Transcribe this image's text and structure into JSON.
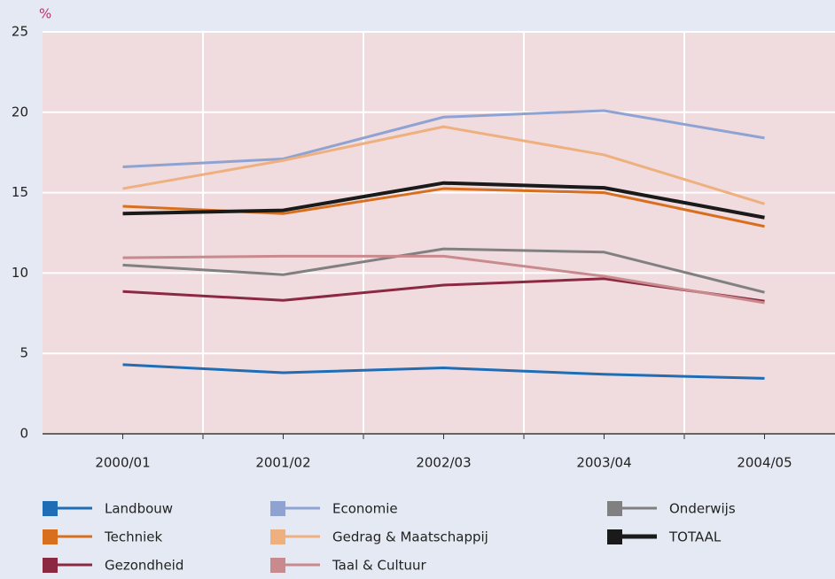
{
  "chart_data": {
    "type": "line",
    "y_label": "%",
    "categories": [
      "2000/01",
      "2001/02",
      "2002/03",
      "2003/04",
      "2004/05"
    ],
    "series": [
      {
        "name": "Landbouw",
        "color": "#1f6db5",
        "values": [
          4.3,
          3.8,
          4.1,
          3.7,
          3.45
        ]
      },
      {
        "name": "Economie",
        "color": "#8fa3d3",
        "values": [
          16.6,
          17.1,
          19.7,
          20.1,
          18.4
        ]
      },
      {
        "name": "Onderwijs",
        "color": "#808080",
        "values": [
          10.5,
          9.9,
          11.5,
          11.3,
          8.8
        ]
      },
      {
        "name": "Techniek",
        "color": "#d86f1f",
        "values": [
          14.15,
          13.7,
          15.25,
          15.0,
          12.9
        ]
      },
      {
        "name": "Gedrag & Maatschappij",
        "color": "#eeb07f",
        "values": [
          15.25,
          17.0,
          19.1,
          17.35,
          14.3
        ]
      },
      {
        "name": "TOTAAL",
        "color": "#1a1a1a",
        "values": [
          13.7,
          13.9,
          15.6,
          15.3,
          13.45
        ]
      },
      {
        "name": "Gezondheid",
        "color": "#8b2942",
        "values": [
          8.85,
          8.3,
          9.25,
          9.65,
          8.25
        ]
      },
      {
        "name": "Taal & Cultuur",
        "color": "#c98a8e",
        "values": [
          10.95,
          11.05,
          11.05,
          9.8,
          8.15
        ]
      }
    ],
    "ylim": [
      0,
      25
    ],
    "yticks": [
      0,
      5,
      10,
      15,
      20,
      25
    ],
    "grid": true
  }
}
